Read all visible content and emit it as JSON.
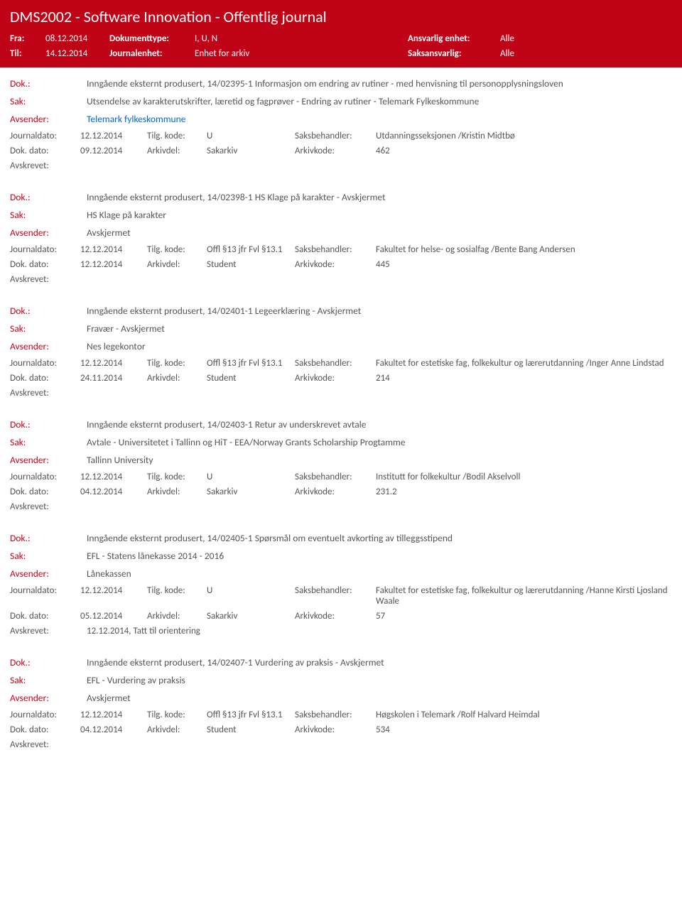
{
  "header": {
    "title": "DMS2002 - Software Innovation - Offentlig journal",
    "fra_label": "Fra:",
    "fra_value": "08.12.2014",
    "til_label": "Til:",
    "til_value": "14.12.2014",
    "doktype_label": "Dokumenttype:",
    "doktype_value": "I, U, N",
    "journalenhet_label": "Journalenhet:",
    "journalenhet_value": "Enhet for arkiv",
    "ansvarlig_label": "Ansvarlig enhet:",
    "ansvarlig_value": "Alle",
    "saksansvarlig_label": "Saksansvarlig:",
    "saksansvarlig_value": "Alle"
  },
  "labels": {
    "dok": "Dok.:",
    "sak": "Sak:",
    "avsender": "Avsender:",
    "journaldato": "Journaldato:",
    "tilgkode": "Tilg. kode:",
    "saksbehandler": "Saksbehandler:",
    "dokdato": "Dok. dato:",
    "arkivdel": "Arkivdel:",
    "arkivkode": "Arkivkode:",
    "avskrevet": "Avskrevet:"
  },
  "entries": [
    {
      "dok": "Inngående eksternt produsert, 14/02395-1 Informasjon om endring av rutiner - med henvisning til personopplysningsloven",
      "sak": "Utsendelse av karakterutskrifter, læretid og fagprøver - Endring av rutiner - Telemark Fylkeskommune",
      "avsender": "Telemark fylkeskommune",
      "avsender_link": true,
      "journaldato": "12.12.2014",
      "tilgkode": "U",
      "saksbehandler": "Utdanningsseksjonen /Kristin Midtbø",
      "dokdato": "09.12.2014",
      "arkivdel": "Sakarkiv",
      "arkivkode": "462",
      "avskrevet": ""
    },
    {
      "dok": "Inngående eksternt produsert, 14/02398-1 HS Klage på karakter - Avskjermet",
      "sak": "HS Klage på karakter",
      "avsender": "Avskjermet",
      "avsender_link": false,
      "journaldato": "12.12.2014",
      "tilgkode": "Offl §13 jfr Fvl §13.1",
      "saksbehandler": "Fakultet for helse- og sosialfag /Bente Bang Andersen",
      "dokdato": "12.12.2014",
      "arkivdel": "Student",
      "arkivkode": "445",
      "avskrevet": ""
    },
    {
      "dok": "Inngående eksternt produsert, 14/02401-1 Legeerklæring - Avskjermet",
      "sak": "Fravær - Avskjermet",
      "avsender": "Nes legekontor",
      "avsender_link": false,
      "journaldato": "12.12.2014",
      "tilgkode": "Offl §13 jfr Fvl §13.1",
      "saksbehandler": "Fakultet for estetiske fag, folkekultur og lærerutdanning /Inger Anne Lindstad",
      "dokdato": "24.11.2014",
      "arkivdel": "Student",
      "arkivkode": "214",
      "avskrevet": ""
    },
    {
      "dok": "Inngående eksternt produsert, 14/02403-1 Retur av underskrevet avtale",
      "sak": "Avtale - Universitetet i Tallinn og HiT - EEA/Norway Grants Scholarship Progtamme",
      "avsender": "Tallinn University",
      "avsender_link": false,
      "journaldato": "12.12.2014",
      "tilgkode": "U",
      "saksbehandler": "Institutt for folkekultur /Bodil Akselvoll",
      "dokdato": "04.12.2014",
      "arkivdel": "Sakarkiv",
      "arkivkode": "231.2",
      "avskrevet": ""
    },
    {
      "dok": "Inngående eksternt produsert, 14/02405-1 Spørsmål om eventuelt avkorting av tilleggsstipend",
      "sak": "EFL - Statens lånekasse 2014 - 2016",
      "avsender": "Lånekassen",
      "avsender_link": false,
      "journaldato": "12.12.2014",
      "tilgkode": "U",
      "saksbehandler": "Fakultet for estetiske fag, folkekultur og lærerutdanning /Hanne Kirsti Ljosland Waale",
      "dokdato": "05.12.2014",
      "arkivdel": "Sakarkiv",
      "arkivkode": "57",
      "avskrevet": "12.12.2014, Tatt til orientering"
    },
    {
      "dok": "Inngående eksternt produsert, 14/02407-1 Vurdering av praksis - Avskjermet",
      "sak": "EFL - Vurdering av praksis",
      "avsender": "Avskjermet",
      "avsender_link": false,
      "journaldato": "12.12.2014",
      "tilgkode": "Offl §13 jfr Fvl §13.1",
      "saksbehandler": "Høgskolen i Telemark /Rolf Halvard Heimdal",
      "dokdato": "04.12.2014",
      "arkivdel": "Student",
      "arkivkode": "534",
      "avskrevet": ""
    }
  ]
}
